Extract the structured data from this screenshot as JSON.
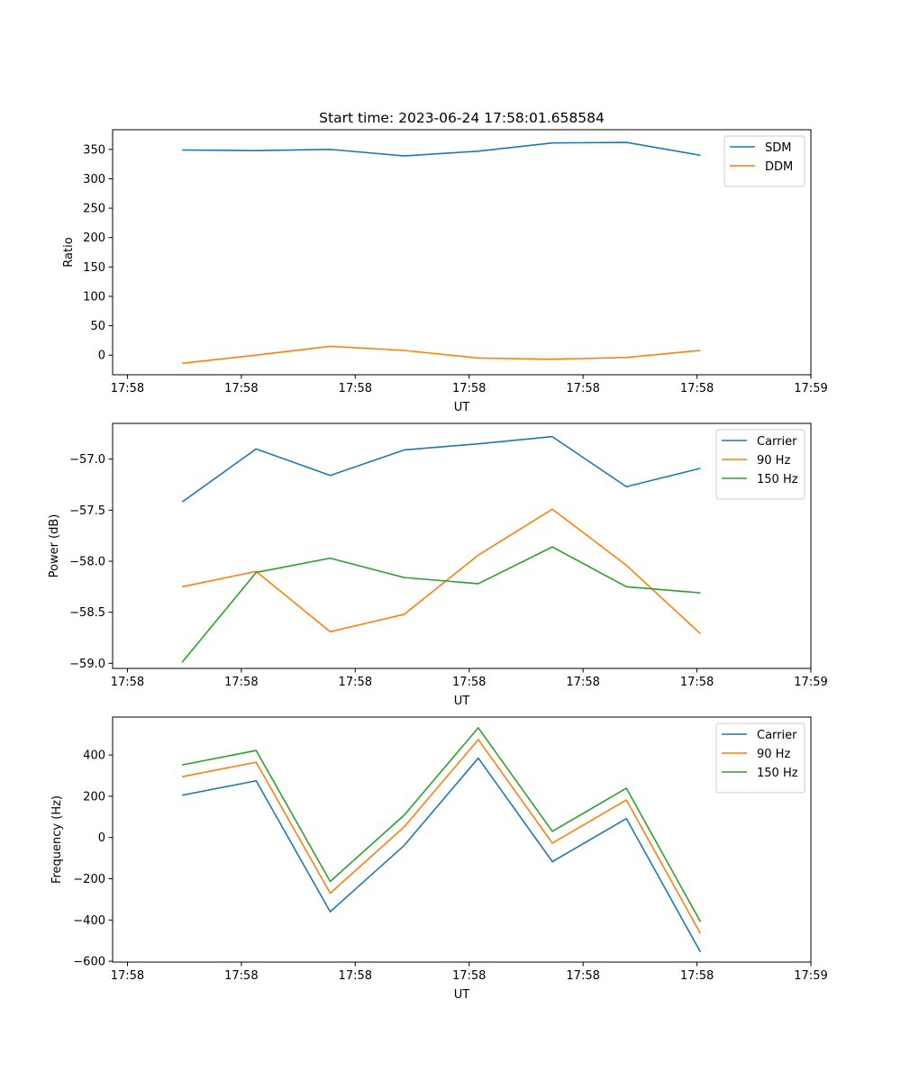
{
  "title": "Start time: 2023-06-24 17:58:01.658584",
  "chart_data": [
    {
      "type": "line",
      "xlabel": "UT",
      "ylabel": "Ratio",
      "x_tick_labels": [
        "17:58",
        "17:58",
        "17:58",
        "17:58",
        "17:58",
        "17:58",
        "17:59"
      ],
      "x_ticks_s": [
        0,
        10,
        20,
        30,
        40,
        50,
        60
      ],
      "x_s": [
        4.8,
        11.3,
        17.8,
        24.3,
        30.8,
        37.3,
        43.8,
        50.3
      ],
      "xlim_s": [
        -1.3,
        60
      ],
      "yticks": [
        0,
        50,
        100,
        150,
        200,
        250,
        300,
        350
      ],
      "ylim": [
        -33.4,
        383.5
      ],
      "legend": "top-right",
      "series": [
        {
          "name": "SDM",
          "color": "#1f77b4",
          "values": [
            349,
            348,
            350,
            339,
            347,
            361,
            362,
            340
          ]
        },
        {
          "name": "DDM",
          "color": "#ff7f0e",
          "values": [
            -14,
            0,
            15,
            8,
            -5,
            -7,
            -4,
            8
          ]
        }
      ]
    },
    {
      "type": "line",
      "xlabel": "UT",
      "ylabel": "Power (dB)",
      "x_tick_labels": [
        "17:58",
        "17:58",
        "17:58",
        "17:58",
        "17:58",
        "17:58",
        "17:59"
      ],
      "x_ticks_s": [
        0,
        10,
        20,
        30,
        40,
        50,
        60
      ],
      "x_s": [
        4.8,
        11.3,
        17.8,
        24.3,
        30.8,
        37.3,
        43.8,
        50.3
      ],
      "xlim_s": [
        -1.3,
        60
      ],
      "yticks": [
        -59.0,
        -58.5,
        -58.0,
        -57.5,
        -57.0
      ],
      "ytick_labels": [
        "−59.0",
        "−58.5",
        "−58.0",
        "−57.5",
        "−57.0"
      ],
      "ylim": [
        -59.05,
        -56.65
      ],
      "legend": "top-right",
      "series": [
        {
          "name": "Carrier",
          "color": "#1f77b4",
          "values": [
            -57.42,
            -56.9,
            -57.16,
            -56.91,
            -56.85,
            -56.78,
            -57.27,
            -57.09
          ]
        },
        {
          "name": "90 Hz",
          "color": "#ff7f0e",
          "values": [
            -58.25,
            -58.1,
            -58.69,
            -58.52,
            -57.94,
            -57.49,
            -58.04,
            -58.71
          ]
        },
        {
          "name": "150 Hz",
          "color": "#2ca02c",
          "values": [
            -58.99,
            -58.11,
            -57.97,
            -58.16,
            -58.22,
            -57.86,
            -58.25,
            -58.31
          ]
        }
      ]
    },
    {
      "type": "line",
      "xlabel": "UT",
      "ylabel": "Frequency (Hz)",
      "x_tick_labels": [
        "17:58",
        "17:58",
        "17:58",
        "17:58",
        "17:58",
        "17:58",
        "17:59"
      ],
      "x_ticks_s": [
        0,
        10,
        20,
        30,
        40,
        50,
        60
      ],
      "x_s": [
        4.8,
        11.3,
        17.8,
        24.3,
        30.8,
        37.3,
        43.8,
        50.3
      ],
      "xlim_s": [
        -1.3,
        60
      ],
      "yticks": [
        -600,
        -400,
        -200,
        0,
        200,
        400
      ],
      "ytick_labels": [
        "−600",
        "−400",
        "−200",
        "0",
        "200",
        "400"
      ],
      "ylim": [
        -604,
        584
      ],
      "legend": "top-right",
      "series": [
        {
          "name": "Carrier",
          "color": "#1f77b4",
          "values": [
            205,
            275,
            -360,
            -38,
            385,
            -117,
            92,
            -555
          ]
        },
        {
          "name": "90 Hz",
          "color": "#ff7f0e",
          "values": [
            295,
            365,
            -270,
            52,
            475,
            -27,
            182,
            -465
          ]
        },
        {
          "name": "150 Hz",
          "color": "#2ca02c",
          "values": [
            352,
            422,
            -213,
            109,
            532,
            30,
            239,
            -408
          ]
        }
      ]
    }
  ]
}
